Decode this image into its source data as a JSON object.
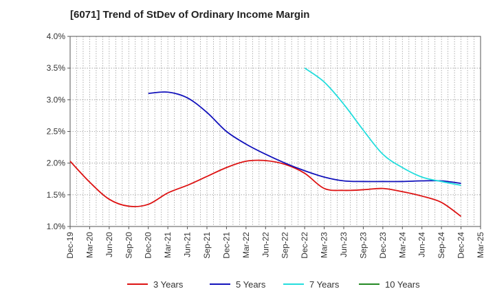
{
  "chart_data": {
    "type": "line",
    "title": "[6071]  Trend of StDev of Ordinary Income Margin",
    "xlabel": "",
    "ylabel": "",
    "x_ticks": [
      "Dec-19",
      "Mar-20",
      "Jun-20",
      "Sep-20",
      "Dec-20",
      "Mar-21",
      "Jun-21",
      "Sep-21",
      "Dec-21",
      "Mar-22",
      "Jun-22",
      "Sep-22",
      "Dec-22",
      "Mar-23",
      "Jun-23",
      "Sep-23",
      "Dec-23",
      "Mar-24",
      "Jun-24",
      "Sep-24",
      "Dec-24",
      "Mar-25"
    ],
    "y_ticks": [
      "1.0%",
      "1.5%",
      "2.0%",
      "2.5%",
      "3.0%",
      "3.5%",
      "4.0%"
    ],
    "ylim": [
      1.0,
      4.0
    ],
    "grid": true,
    "legend_position": "bottom",
    "series": [
      {
        "name": "3 Years",
        "color": "#dd1111",
        "x": [
          "Dec-19",
          "Mar-20",
          "Jun-20",
          "Sep-20",
          "Dec-20",
          "Mar-21",
          "Jun-21",
          "Sep-21",
          "Dec-21",
          "Mar-22",
          "Jun-22",
          "Sep-22",
          "Dec-22",
          "Mar-23",
          "Jun-23",
          "Sep-23",
          "Dec-23",
          "Mar-24",
          "Jun-24",
          "Sep-24",
          "Dec-24"
        ],
        "values": [
          2.03,
          1.7,
          1.43,
          1.32,
          1.35,
          1.53,
          1.65,
          1.79,
          1.93,
          2.03,
          2.04,
          1.98,
          1.84,
          1.6,
          1.57,
          1.58,
          1.6,
          1.55,
          1.48,
          1.38,
          1.16
        ]
      },
      {
        "name": "5 Years",
        "color": "#1111bb",
        "x": [
          "Dec-20",
          "Mar-21",
          "Jun-21",
          "Sep-21",
          "Dec-21",
          "Mar-22",
          "Jun-22",
          "Sep-22",
          "Dec-22",
          "Mar-23",
          "Jun-23",
          "Sep-23",
          "Dec-23",
          "Mar-24",
          "Jun-24",
          "Sep-24",
          "Dec-24"
        ],
        "values": [
          3.1,
          3.12,
          3.03,
          2.8,
          2.5,
          2.3,
          2.14,
          2.0,
          1.88,
          1.78,
          1.72,
          1.71,
          1.71,
          1.71,
          1.72,
          1.72,
          1.68
        ]
      },
      {
        "name": "7 Years",
        "color": "#22dddd",
        "x": [
          "Dec-22",
          "Mar-23",
          "Jun-23",
          "Sep-23",
          "Dec-23",
          "Mar-24",
          "Jun-24",
          "Sep-24",
          "Dec-24"
        ],
        "values": [
          3.5,
          3.28,
          2.93,
          2.52,
          2.14,
          1.93,
          1.78,
          1.71,
          1.65
        ]
      },
      {
        "name": "10 Years",
        "color": "#228822",
        "x": [],
        "values": []
      }
    ]
  }
}
